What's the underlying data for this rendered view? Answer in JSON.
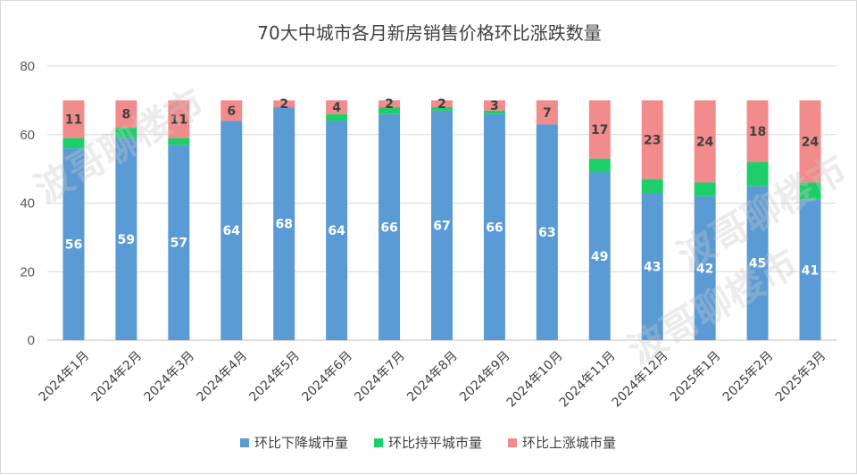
{
  "chart_data": {
    "type": "bar",
    "stacked": true,
    "title": "70大中城市各月新房销售价格环比涨跌数量",
    "categories": [
      "2024年1月",
      "2024年2月",
      "2024年3月",
      "2024年4月",
      "2024年5月",
      "2024年6月",
      "2024年7月",
      "2024年8月",
      "2024年9月",
      "2024年10月",
      "2024年11月",
      "2024年12月",
      "2025年1月",
      "2025年2月",
      "2025年3月"
    ],
    "series": [
      {
        "name": "环比下降城市量",
        "color": "#5b9bd5",
        "values": [
          56,
          59,
          57,
          64,
          68,
          64,
          66,
          67,
          66,
          63,
          49,
          43,
          42,
          45,
          41
        ],
        "labels": [
          "56",
          "59",
          "57",
          "64",
          "68",
          "64",
          "66",
          "67",
          "66",
          "63",
          "49",
          "43",
          "42",
          "45",
          "41"
        ]
      },
      {
        "name": "环比持平城市量",
        "color": "#1ccf6b",
        "values": [
          3,
          3,
          2,
          0,
          0,
          2,
          2,
          1,
          1,
          0,
          4,
          4,
          4,
          7,
          5
        ]
      },
      {
        "name": "环比上涨城市量",
        "color": "#f28b8b",
        "values": [
          11,
          8,
          11,
          6,
          2,
          4,
          2,
          2,
          3,
          7,
          17,
          23,
          24,
          18,
          24
        ],
        "labels": [
          "11",
          "8",
          "11",
          "6",
          "2",
          "4",
          "2",
          "2",
          "3",
          "7",
          "17",
          "23",
          "24",
          "18",
          "24"
        ]
      }
    ],
    "ylim": [
      0,
      80
    ],
    "yticks": [
      "0",
      "20",
      "40",
      "60",
      "80"
    ],
    "grid": true,
    "legend_position": "bottom"
  },
  "watermark": {
    "text": "波哥聊楼市"
  }
}
